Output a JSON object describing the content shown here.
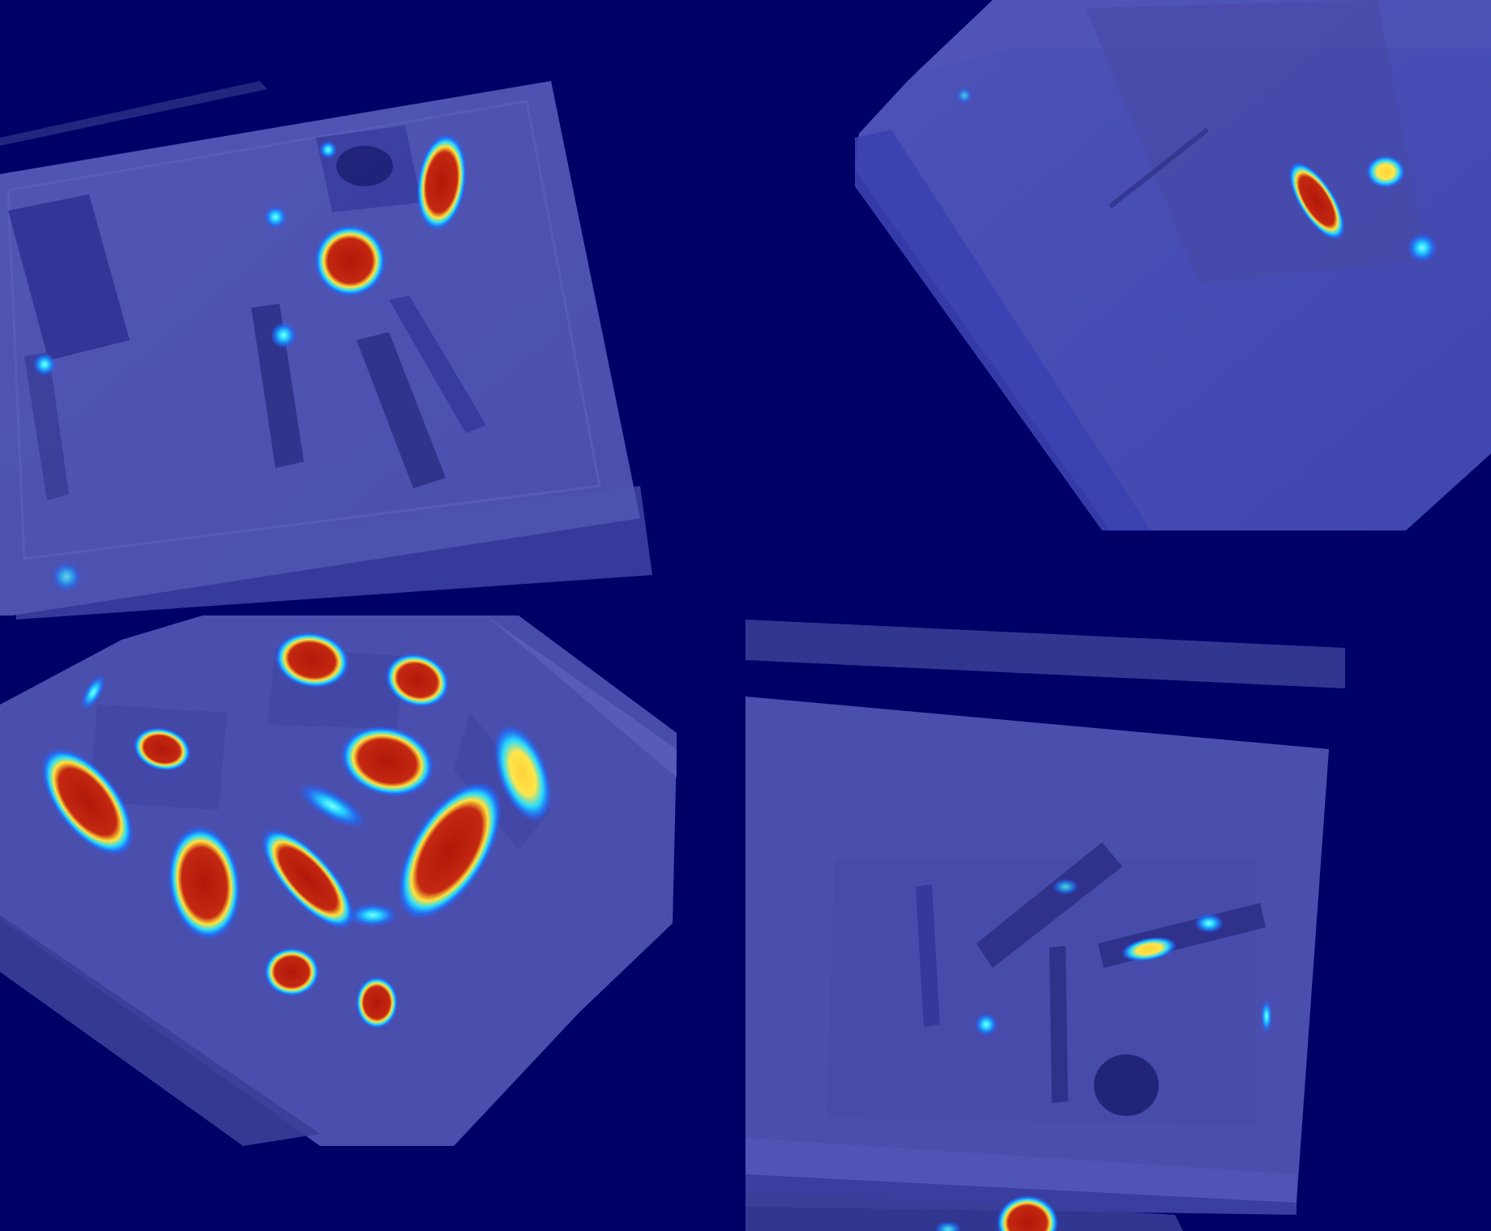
{
  "colors": {
    "background": "#000066",
    "depth_surface": "#4a4fae",
    "depth_surface_dark": "#3a3f98",
    "depth_surface_light": "#5b60bd",
    "shadow": "#2c2f86",
    "heat_low": "#1e7bff",
    "heat_mid": "#20d8ff",
    "heat_yellow": "#ffe23a",
    "heat_high": "#c02010"
  },
  "panels": [
    {
      "id": "top-left",
      "label": ""
    },
    {
      "id": "top-right",
      "label": ""
    },
    {
      "id": "bottom-left",
      "label": ""
    },
    {
      "id": "bottom-right",
      "label": ""
    }
  ]
}
